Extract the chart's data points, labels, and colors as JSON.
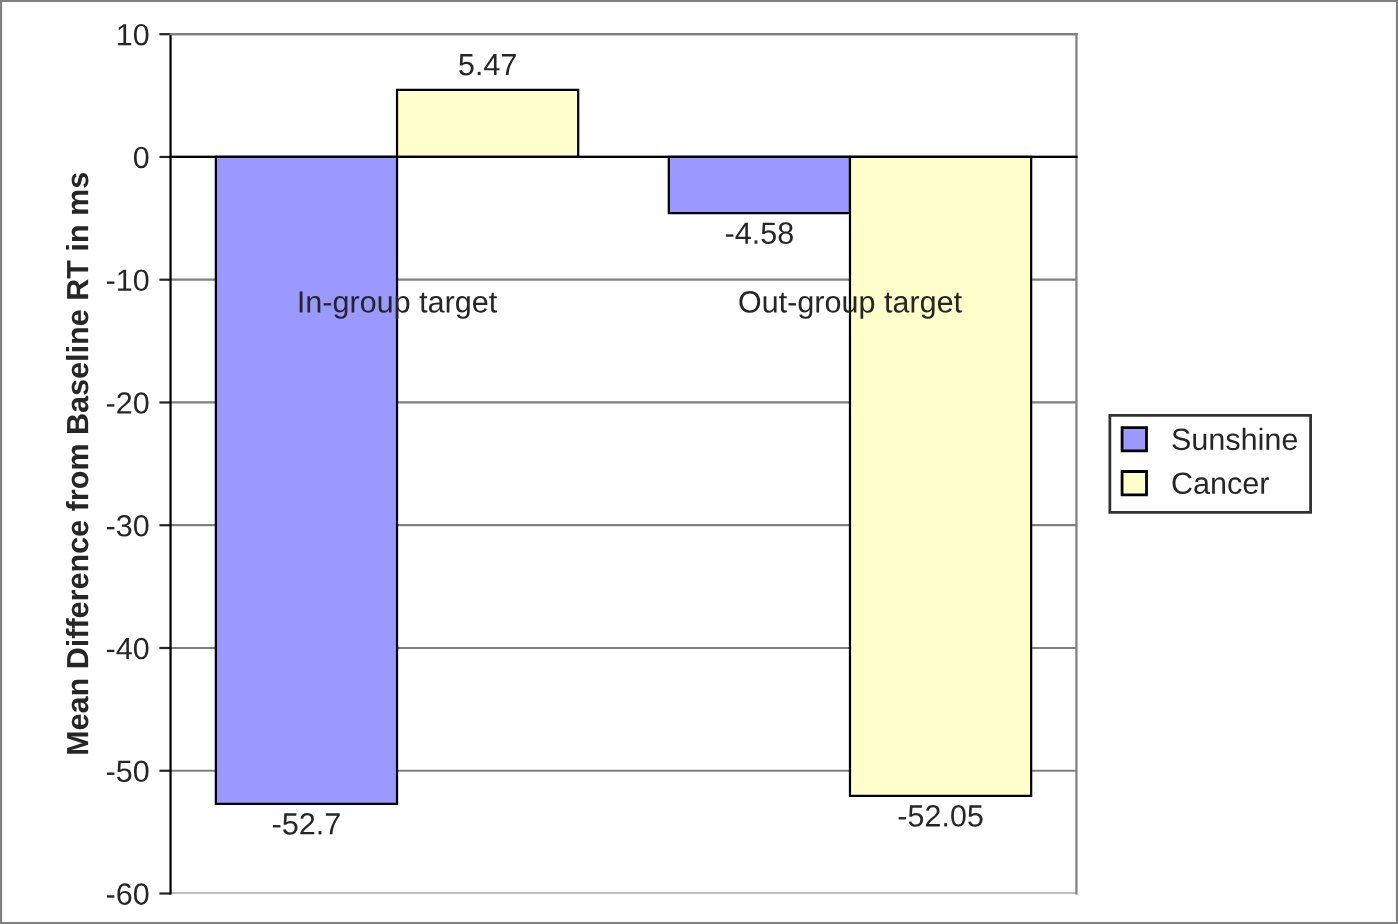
{
  "chart_data": {
    "type": "bar",
    "ylabel": "Mean Difference from Baseline RT in ms",
    "categories": [
      "In-group target",
      "Out-group target"
    ],
    "series": [
      {
        "name": "Sunshine",
        "color": "#9999ff",
        "values": [
          -52.7,
          -4.58
        ]
      },
      {
        "name": "Cancer",
        "color": "#ffffcc",
        "values": [
          5.47,
          -52.05
        ]
      }
    ],
    "ylim": [
      -60,
      10
    ],
    "yticks": [
      -60,
      -50,
      -40,
      -30,
      -20,
      -10,
      0,
      10
    ],
    "grid": "y",
    "legend": "right",
    "data_labels": true
  }
}
